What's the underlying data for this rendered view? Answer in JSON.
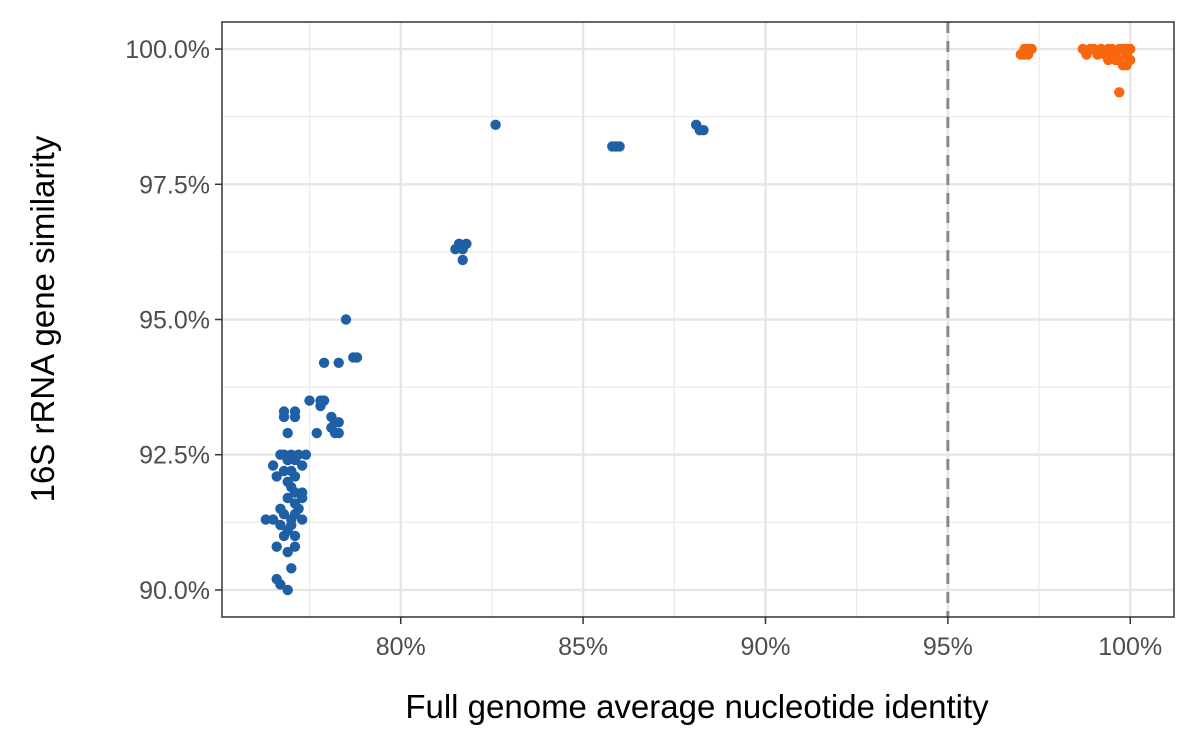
{
  "chart_data": {
    "type": "scatter",
    "title": "",
    "xlabel": "Full genome average nucleotide identity",
    "ylabel": "16S rRNA gene similarity",
    "xlim": [
      75.1,
      101.2
    ],
    "ylim": [
      89.5,
      100.5
    ],
    "x_ticks": [
      80,
      85,
      90,
      95,
      100
    ],
    "x_tick_labels": [
      "80%",
      "85%",
      "90%",
      "95%",
      "100%"
    ],
    "y_ticks": [
      90,
      92.5,
      95,
      97.5,
      100
    ],
    "y_tick_labels": [
      "90.0%",
      "92.5%",
      "95.0%",
      "97.5%",
      "100.0%"
    ],
    "grid": true,
    "reference_line": {
      "x": 95,
      "style": "dashed",
      "color": "#888888"
    },
    "series": [
      {
        "color": "#1f5fa6",
        "points": [
          [
            82.6,
            98.6
          ],
          [
            88.1,
            98.6
          ],
          [
            88.2,
            98.5
          ],
          [
            88.3,
            98.5
          ],
          [
            85.8,
            98.2
          ],
          [
            85.9,
            98.2
          ],
          [
            86.0,
            98.2
          ],
          [
            81.5,
            96.3
          ],
          [
            81.6,
            96.4
          ],
          [
            81.7,
            96.3
          ],
          [
            81.8,
            96.4
          ],
          [
            81.7,
            96.1
          ],
          [
            78.5,
            95.0
          ],
          [
            78.7,
            94.3
          ],
          [
            78.8,
            94.3
          ],
          [
            78.3,
            94.2
          ],
          [
            77.9,
            94.2
          ],
          [
            77.5,
            93.5
          ],
          [
            77.8,
            93.5
          ],
          [
            77.9,
            93.5
          ],
          [
            77.8,
            93.4
          ],
          [
            78.1,
            93.2
          ],
          [
            78.2,
            93.1
          ],
          [
            78.3,
            93.1
          ],
          [
            78.1,
            93.0
          ],
          [
            78.2,
            92.9
          ],
          [
            78.3,
            92.9
          ],
          [
            77.7,
            92.9
          ],
          [
            76.8,
            93.3
          ],
          [
            76.8,
            93.2
          ],
          [
            77.1,
            93.3
          ],
          [
            77.1,
            93.2
          ],
          [
            76.9,
            92.9
          ],
          [
            76.5,
            92.3
          ],
          [
            76.6,
            92.1
          ],
          [
            76.7,
            92.5
          ],
          [
            76.8,
            92.5
          ],
          [
            76.9,
            92.4
          ],
          [
            77.0,
            92.5
          ],
          [
            77.1,
            92.4
          ],
          [
            77.2,
            92.5
          ],
          [
            77.3,
            92.3
          ],
          [
            77.4,
            92.5
          ],
          [
            77.0,
            92.2
          ],
          [
            76.8,
            92.2
          ],
          [
            77.1,
            92.1
          ],
          [
            76.9,
            92.0
          ],
          [
            77.0,
            91.9
          ],
          [
            77.1,
            91.8
          ],
          [
            77.3,
            91.8
          ],
          [
            77.3,
            91.7
          ],
          [
            76.9,
            91.7
          ],
          [
            77.1,
            91.6
          ],
          [
            77.2,
            91.5
          ],
          [
            76.7,
            91.5
          ],
          [
            76.8,
            91.4
          ],
          [
            77.0,
            91.3
          ],
          [
            77.1,
            91.4
          ],
          [
            76.3,
            91.3
          ],
          [
            76.5,
            91.3
          ],
          [
            76.7,
            91.2
          ],
          [
            76.9,
            91.1
          ],
          [
            77.0,
            91.2
          ],
          [
            77.3,
            91.3
          ],
          [
            76.8,
            91.0
          ],
          [
            77.1,
            91.0
          ],
          [
            76.6,
            90.8
          ],
          [
            76.9,
            90.7
          ],
          [
            77.1,
            90.8
          ],
          [
            77.0,
            90.4
          ],
          [
            76.6,
            90.2
          ],
          [
            76.7,
            90.1
          ],
          [
            76.9,
            90.0
          ]
        ]
      },
      {
        "color": "#f8660d",
        "points": [
          [
            97.0,
            99.9
          ],
          [
            97.1,
            99.9
          ],
          [
            97.2,
            99.9
          ],
          [
            97.2,
            100.0
          ],
          [
            97.3,
            100.0
          ],
          [
            97.1,
            100.0
          ],
          [
            98.7,
            100.0
          ],
          [
            98.8,
            99.9
          ],
          [
            98.9,
            100.0
          ],
          [
            99.0,
            100.0
          ],
          [
            99.1,
            99.9
          ],
          [
            99.2,
            100.0
          ],
          [
            99.3,
            99.9
          ],
          [
            99.4,
            100.0
          ],
          [
            99.4,
            99.8
          ],
          [
            99.5,
            100.0
          ],
          [
            99.5,
            99.9
          ],
          [
            99.6,
            99.9
          ],
          [
            99.6,
            99.8
          ],
          [
            99.7,
            100.0
          ],
          [
            99.7,
            99.8
          ],
          [
            99.8,
            100.0
          ],
          [
            99.8,
            99.7
          ],
          [
            99.9,
            99.9
          ],
          [
            99.9,
            100.0
          ],
          [
            100.0,
            100.0
          ],
          [
            100.0,
            99.8
          ],
          [
            99.9,
            99.7
          ],
          [
            99.7,
            99.2
          ]
        ]
      }
    ]
  }
}
